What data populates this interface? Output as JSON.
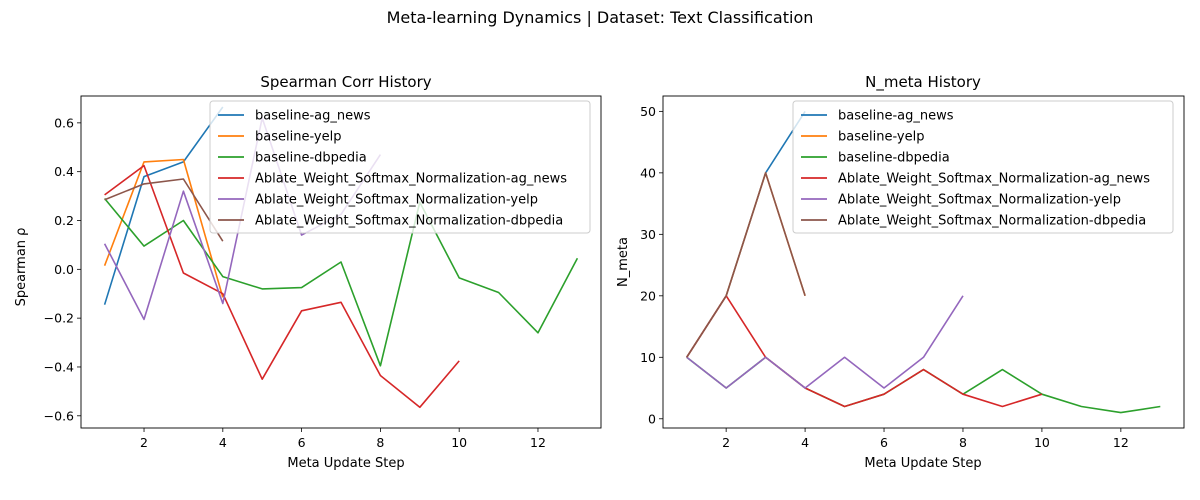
{
  "figure": {
    "suptitle": "Meta-learning Dynamics | Dataset: Text Classification"
  },
  "colors": {
    "baseline-ag_news": "#1f77b4",
    "baseline-yelp": "#ff7f0e",
    "baseline-dbpedia": "#2ca02c",
    "Ablate_Weight_Softmax_Normalization-ag_news": "#d62728",
    "Ablate_Weight_Softmax_Normalization-yelp": "#9467bd",
    "Ablate_Weight_Softmax_Normalization-dbpedia": "#8c564b"
  },
  "chart_data": [
    {
      "type": "line",
      "title": "Spearman Corr History",
      "xlabel": "Meta Update Step",
      "ylabel": "Spearman ρ",
      "xlim": [
        0.4,
        13.6
      ],
      "ylim": [
        -0.65,
        0.71
      ],
      "xticks": [
        2,
        4,
        6,
        8,
        10,
        12
      ],
      "yticks": [
        -0.6,
        -0.4,
        -0.2,
        0.0,
        0.2,
        0.4,
        0.6
      ],
      "ytick_labels": [
        "−0.6",
        "−0.4",
        "−0.2",
        "0.0",
        "0.2",
        "0.4",
        "0.6"
      ],
      "legend": "top-right",
      "series": [
        {
          "name": "baseline-ag_news",
          "x": [
            1,
            2,
            3,
            4
          ],
          "y": [
            -0.145,
            0.38,
            0.44,
            0.665
          ]
        },
        {
          "name": "baseline-yelp",
          "x": [
            1,
            2,
            3,
            4
          ],
          "y": [
            0.015,
            0.44,
            0.45,
            -0.115
          ]
        },
        {
          "name": "baseline-dbpedia",
          "x": [
            1,
            2,
            3,
            4,
            5,
            6,
            7,
            8,
            9,
            10,
            11,
            12,
            13
          ],
          "y": [
            0.29,
            0.095,
            0.2,
            -0.03,
            -0.08,
            -0.075,
            0.03,
            -0.395,
            0.275,
            -0.035,
            -0.095,
            -0.26,
            0.045
          ]
        },
        {
          "name": "Ablate_Weight_Softmax_Normalization-ag_news",
          "x": [
            1,
            2,
            3,
            4,
            5,
            6,
            7,
            8,
            9,
            10
          ],
          "y": [
            0.305,
            0.425,
            -0.015,
            -0.1,
            -0.45,
            -0.17,
            -0.135,
            -0.435,
            -0.565,
            -0.375
          ]
        },
        {
          "name": "Ablate_Weight_Softmax_Normalization-yelp",
          "x": [
            1,
            2,
            3,
            4,
            5,
            6,
            7,
            8
          ],
          "y": [
            0.105,
            -0.205,
            0.32,
            -0.14,
            0.62,
            0.14,
            0.225,
            0.47
          ]
        },
        {
          "name": "Ablate_Weight_Softmax_Normalization-dbpedia",
          "x": [
            1,
            2,
            3,
            4
          ],
          "y": [
            0.285,
            0.35,
            0.37,
            0.115
          ]
        }
      ]
    },
    {
      "type": "line",
      "title": "N_meta History",
      "xlabel": "Meta Update Step",
      "ylabel": "N_meta",
      "xlim": [
        0.4,
        13.6
      ],
      "ylim": [
        -1.5,
        52.5
      ],
      "xticks": [
        2,
        4,
        6,
        8,
        10,
        12
      ],
      "yticks": [
        0,
        10,
        20,
        30,
        40,
        50
      ],
      "ytick_labels": [
        "0",
        "10",
        "20",
        "30",
        "40",
        "50"
      ],
      "legend": "top-right",
      "series": [
        {
          "name": "baseline-ag_news",
          "x": [
            1,
            2,
            3,
            4
          ],
          "y": [
            10,
            20,
            40,
            50
          ]
        },
        {
          "name": "baseline-yelp",
          "x": [
            1,
            2,
            3,
            4
          ],
          "y": [
            10,
            20,
            40,
            20
          ]
        },
        {
          "name": "baseline-dbpedia",
          "x": [
            1,
            2,
            3,
            4,
            5,
            6,
            7,
            8,
            9,
            10,
            11,
            12,
            13
          ],
          "y": [
            10,
            5,
            10,
            5,
            2,
            4,
            8,
            4,
            8,
            4,
            2,
            1,
            2
          ]
        },
        {
          "name": "Ablate_Weight_Softmax_Normalization-ag_news",
          "x": [
            1,
            2,
            3,
            4,
            5,
            6,
            7,
            8,
            9,
            10
          ],
          "y": [
            10,
            20,
            10,
            5,
            2,
            4,
            8,
            4,
            2,
            4
          ]
        },
        {
          "name": "Ablate_Weight_Softmax_Normalization-yelp",
          "x": [
            1,
            2,
            3,
            4,
            5,
            6,
            7,
            8
          ],
          "y": [
            10,
            5,
            10,
            5,
            10,
            5,
            10,
            20
          ]
        },
        {
          "name": "Ablate_Weight_Softmax_Normalization-dbpedia",
          "x": [
            1,
            2,
            3,
            4
          ],
          "y": [
            10,
            20,
            40,
            20
          ]
        }
      ]
    }
  ]
}
